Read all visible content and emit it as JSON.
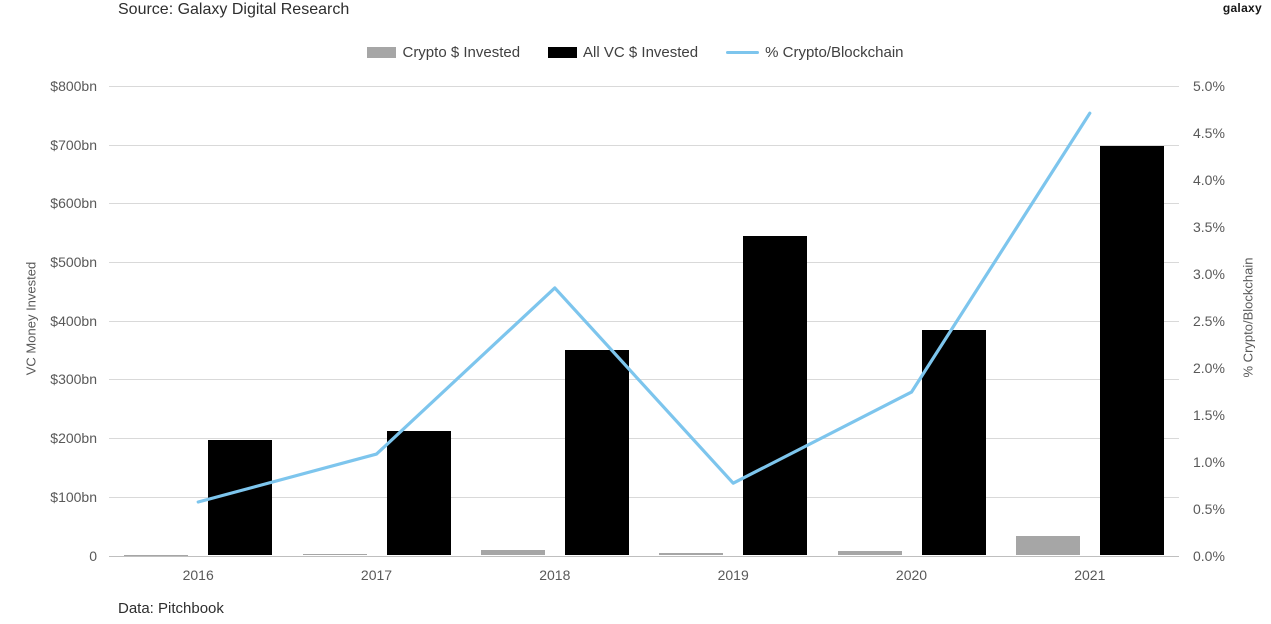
{
  "header": {
    "source": "Source: Galaxy Digital Research",
    "logo": "galaxy"
  },
  "footer": {
    "data_note": "Data: Pitchbook"
  },
  "chart_data": {
    "type": "combo",
    "title": "",
    "legend_position": "top",
    "grid": true,
    "categories": [
      "2016",
      "2017",
      "2018",
      "2019",
      "2020",
      "2021"
    ],
    "series": [
      {
        "name": "Crypto $ Invested",
        "type": "bar",
        "axis": "left",
        "color": "#a6a6a6",
        "values": [
          1,
          3,
          9,
          4,
          7,
          33
        ]
      },
      {
        "name": "All VC $ Invested",
        "type": "bar",
        "axis": "left",
        "color": "#000000",
        "values": [
          197,
          212,
          350,
          545,
          385,
          697
        ]
      },
      {
        "name": "% Crypto/Blockchain",
        "type": "line",
        "axis": "right",
        "color": "#7dc5ed",
        "values": [
          0.57,
          1.08,
          2.85,
          0.77,
          1.74,
          4.71
        ]
      }
    ],
    "left_axis": {
      "title": "VC Money Invested",
      "min": 0,
      "max": 800,
      "unit": "$bn",
      "tick_labels": [
        "$800bn",
        "$700bn",
        "$600bn",
        "$500bn",
        "$400bn",
        "$300bn",
        "$200bn",
        "$100bn",
        "0"
      ]
    },
    "right_axis": {
      "title": "% Crypto/Blockchain",
      "min": 0,
      "max": 5,
      "unit": "%",
      "tick_labels": [
        "5.0%",
        "4.5%",
        "4.0%",
        "3.5%",
        "3.0%",
        "2.5%",
        "2.0%",
        "1.5%",
        "1.0%",
        "0.5%",
        "0.0%"
      ]
    }
  }
}
